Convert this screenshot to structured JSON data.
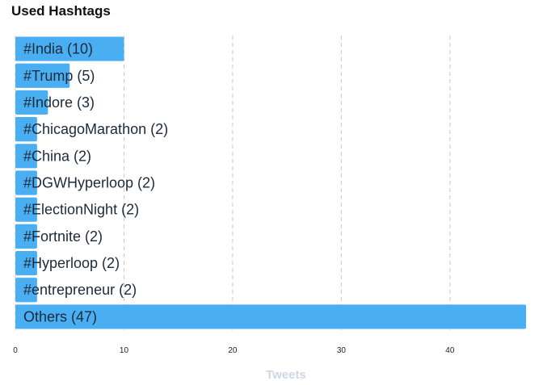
{
  "colors": {
    "bar": "#4aaef2",
    "grid": "#c8c8c8",
    "label": "#1e2a3a",
    "axis_title": "#cdd8e6"
  },
  "chart_data": {
    "type": "bar",
    "orientation": "horizontal",
    "title": "Used Hashtags",
    "xlabel": "Tweets",
    "ylabel": "",
    "categories": [
      "#India",
      "#Trump",
      "#Indore",
      "#ChicagoMarathon",
      "#China",
      "#DGWHyperloop",
      "#ElectionNight",
      "#Fortnite",
      "#Hyperloop",
      "#entrepreneur",
      "Others"
    ],
    "values": [
      10,
      5,
      3,
      2,
      2,
      2,
      2,
      2,
      2,
      2,
      47
    ],
    "bar_labels": [
      "#India (10)",
      "#Trump (5)",
      "#Indore (3)",
      "#ChicagoMarathon (2)",
      "#China (2)",
      "#DGWHyperloop (2)",
      "#ElectionNight (2)",
      "#Fortnite (2)",
      "#Hyperloop (2)",
      "#entrepreneur (2)",
      "Others (47)"
    ],
    "xlim": [
      0,
      47
    ],
    "xticks": [
      0,
      10,
      20,
      30,
      40
    ],
    "grid": true,
    "grid_style": "dashed-vertical",
    "legend": "none"
  }
}
